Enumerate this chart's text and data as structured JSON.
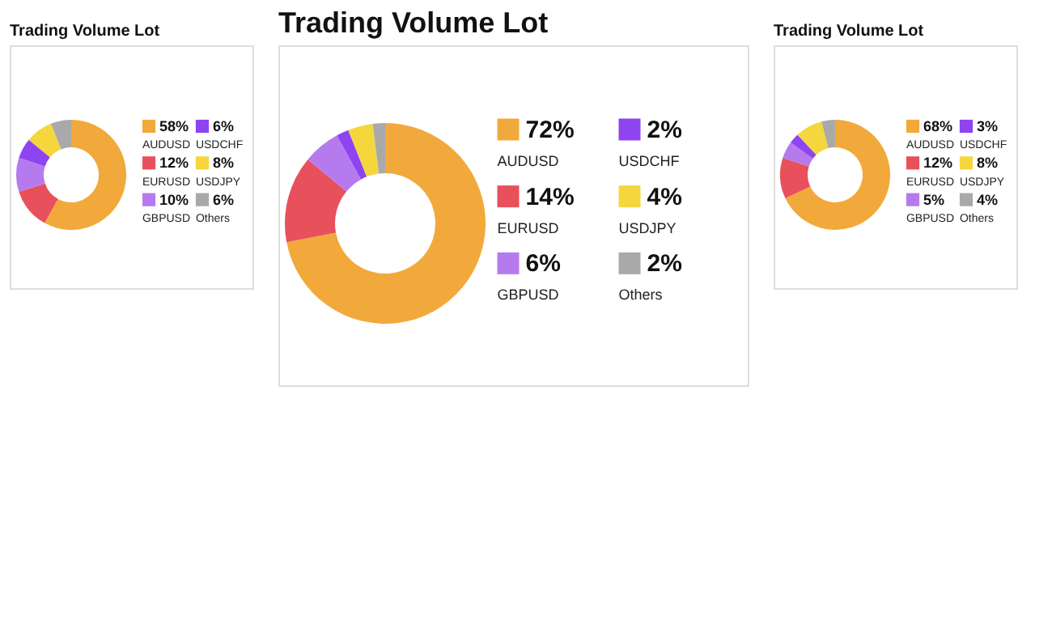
{
  "chart_data": [
    {
      "type": "donut",
      "title": "Trading Volume Lot",
      "categories": [
        "AUDUSD",
        "EURUSD",
        "GBPUSD",
        "USDCHF",
        "USDJPY",
        "Others"
      ],
      "values": [
        58,
        12,
        10,
        6,
        8,
        6
      ],
      "value_labels": [
        "58%",
        "12%",
        "10%",
        "6%",
        "8%",
        "6%"
      ],
      "colors": [
        "#f2a93b",
        "#e8505b",
        "#b57bee",
        "#8e44f0",
        "#f5d63d",
        "#a9a9a9"
      ],
      "legend": "right"
    },
    {
      "type": "donut",
      "title": "Trading Volume Lot",
      "categories": [
        "AUDUSD",
        "EURUSD",
        "GBPUSD",
        "USDCHF",
        "USDJPY",
        "Others"
      ],
      "values": [
        72,
        14,
        6,
        2,
        4,
        2
      ],
      "value_labels": [
        "72%",
        "14%",
        "6%",
        "2%",
        "4%",
        "2%"
      ],
      "colors": [
        "#f2a93b",
        "#e8505b",
        "#b57bee",
        "#8e44f0",
        "#f5d63d",
        "#a9a9a9"
      ],
      "legend": "right"
    },
    {
      "type": "donut",
      "title": "Trading Volume Lot",
      "categories": [
        "AUDUSD",
        "EURUSD",
        "GBPUSD",
        "USDCHF",
        "USDJPY",
        "Others"
      ],
      "values": [
        68,
        12,
        5,
        3,
        8,
        4
      ],
      "value_labels": [
        "68%",
        "12%",
        "5%",
        "3%",
        "8%",
        "4%"
      ],
      "colors": [
        "#f2a93b",
        "#e8505b",
        "#b57bee",
        "#8e44f0",
        "#f5d63d",
        "#a9a9a9"
      ],
      "legend": "right"
    }
  ]
}
